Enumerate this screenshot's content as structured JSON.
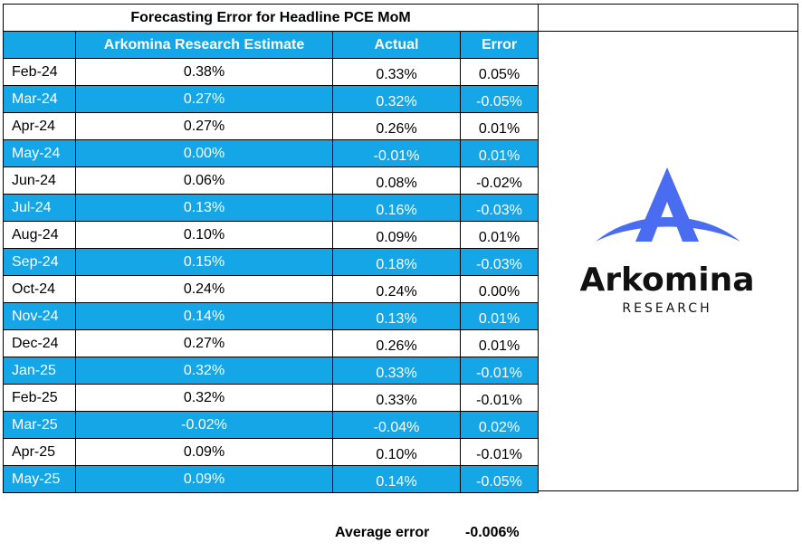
{
  "table": {
    "title": "Forecasting Error for Headline PCE MoM",
    "headers": {
      "month": "",
      "estimate": "Arkomina Research Estimate",
      "actual": "Actual",
      "error": "Error"
    },
    "rows": [
      {
        "month": "Feb-24",
        "estimate": "0.38%",
        "actual": "0.33%",
        "error": "0.05%"
      },
      {
        "month": "Mar-24",
        "estimate": "0.27%",
        "actual": "0.32%",
        "error": "-0.05%"
      },
      {
        "month": "Apr-24",
        "estimate": "0.27%",
        "actual": "0.26%",
        "error": "0.01%"
      },
      {
        "month": "May-24",
        "estimate": "0.00%",
        "actual": "-0.01%",
        "error": "0.01%"
      },
      {
        "month": "Jun-24",
        "estimate": "0.06%",
        "actual": "0.08%",
        "error": "-0.02%"
      },
      {
        "month": "Jul-24",
        "estimate": "0.13%",
        "actual": "0.16%",
        "error": "-0.03%"
      },
      {
        "month": "Aug-24",
        "estimate": "0.10%",
        "actual": "0.09%",
        "error": "0.01%"
      },
      {
        "month": "Sep-24",
        "estimate": "0.15%",
        "actual": "0.18%",
        "error": "-0.03%"
      },
      {
        "month": "Oct-24",
        "estimate": "0.24%",
        "actual": "0.24%",
        "error": "0.00%"
      },
      {
        "month": "Nov-24",
        "estimate": "0.14%",
        "actual": "0.13%",
        "error": "0.01%"
      },
      {
        "month": "Dec-24",
        "estimate": "0.27%",
        "actual": "0.26%",
        "error": "0.01%"
      },
      {
        "month": "Jan-25",
        "estimate": "0.32%",
        "actual": "0.33%",
        "error": "-0.01%"
      },
      {
        "month": "Feb-25",
        "estimate": "0.32%",
        "actual": "0.33%",
        "error": "-0.01%"
      },
      {
        "month": "Mar-25",
        "estimate": "-0.02%",
        "actual": "-0.04%",
        "error": "0.02%"
      },
      {
        "month": "Apr-25",
        "estimate": "0.09%",
        "actual": "0.10%",
        "error": "-0.01%"
      },
      {
        "month": "May-25",
        "estimate": "0.09%",
        "actual": "0.14%",
        "error": "-0.05%"
      }
    ]
  },
  "logo": {
    "name": "Arkomina",
    "tagline": "RESEARCH"
  },
  "summary": {
    "label": "Average error",
    "value": "-0.006%"
  },
  "colors": {
    "band": "#14a6e6",
    "logo_primary": "#4a6cf0",
    "logo_text": "#111111"
  }
}
